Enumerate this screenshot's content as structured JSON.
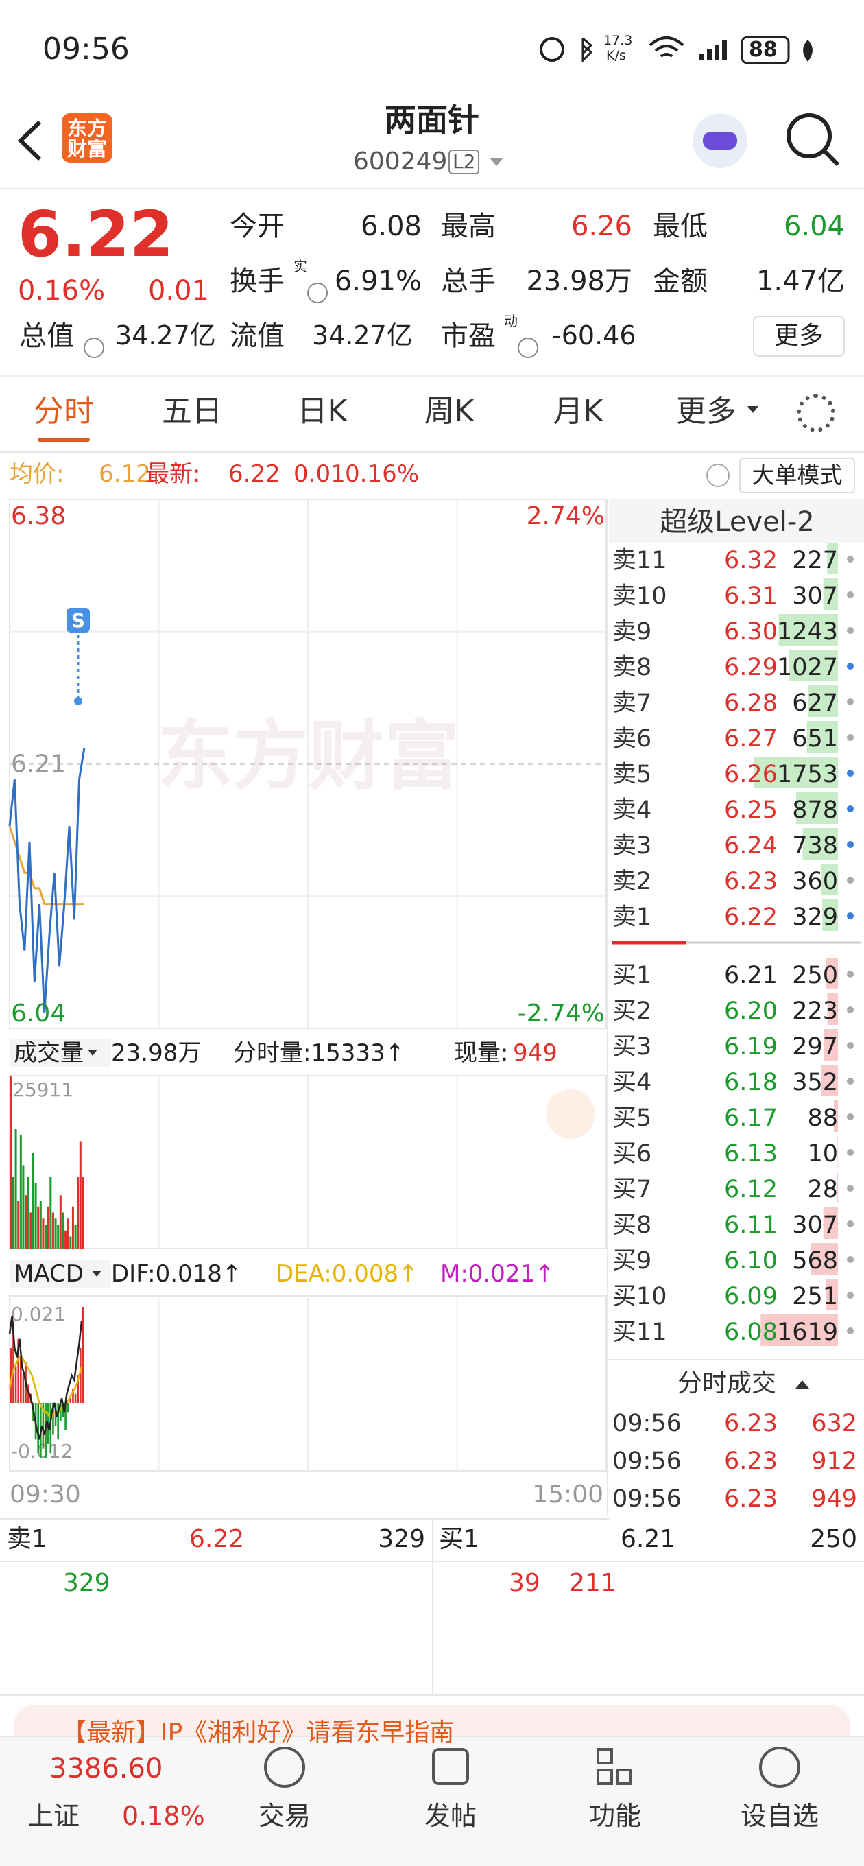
{
  "status_bar": {
    "time": "09:56",
    "net_speed": "17.3",
    "net_unit": "K/s",
    "battery": "88"
  },
  "header": {
    "logo": "东方财富",
    "title": "两面针",
    "code": "600249",
    "badge": "L2"
  },
  "quote": {
    "price": "6.22",
    "change_pct": "0.16%",
    "change": "0.01",
    "stats": [
      [
        "今开",
        "6.08"
      ],
      [
        "最高",
        "6.26"
      ],
      [
        "最低",
        "6.04"
      ],
      [
        "换手",
        "6.91%"
      ],
      [
        "总手",
        "23.98万"
      ],
      [
        "金额",
        "1.47亿"
      ],
      [
        "总值",
        "34.27亿"
      ],
      [
        "流值",
        "34.27亿"
      ],
      [
        "市盈",
        "-60.46"
      ]
    ],
    "turnover_sup": "实",
    "pe_sup": "动",
    "more": "更多"
  },
  "tabs": [
    "分时",
    "五日",
    "日K",
    "周K",
    "月K",
    "更多"
  ],
  "info_bar": {
    "avg_label": "均价:",
    "avg": "6.12",
    "last_label": "最新:",
    "last": "6.22",
    "change": "0.01",
    "change_pct": "0.16%",
    "mode": "大单模式"
  },
  "intraday": {
    "ylim": [
      6.04,
      6.38
    ],
    "yticks": [
      6.38,
      6.21,
      6.04
    ],
    "pct_high": "2.74%",
    "pct_low": "-2.74%",
    "watermark": "东方财富",
    "signal": "S",
    "xlim": [
      0,
      240
    ],
    "xticks": [
      {
        "value": 0,
        "label": "09:30"
      },
      {
        "value": 240,
        "label": "15:00"
      }
    ],
    "x": [
      0,
      2,
      4,
      6,
      8,
      10,
      12,
      14,
      16,
      18,
      20,
      22,
      24,
      26,
      28,
      30
    ],
    "price": [
      6.17,
      6.2,
      6.12,
      6.09,
      6.16,
      6.07,
      6.12,
      6.05,
      6.1,
      6.14,
      6.08,
      6.12,
      6.17,
      6.11,
      6.2,
      6.22
    ],
    "avg": [
      6.17,
      6.16,
      6.15,
      6.14,
      6.14,
      6.13,
      6.13,
      6.12,
      6.12,
      6.12,
      6.12,
      6.12,
      6.12,
      6.12,
      6.12,
      6.12
    ],
    "price_color": "#2f6fc4",
    "avg_color": "#e8a33a"
  },
  "volume": {
    "menu": "成交量",
    "total": "23.98万",
    "minute_vol": "分时量:15333↑",
    "current_label": "现量:",
    "current": "949",
    "ylim": [
      0,
      25911
    ],
    "yticks": [
      25911
    ],
    "x": [
      0,
      1,
      2,
      3,
      4,
      5,
      6,
      7,
      8,
      9,
      10,
      11,
      12,
      13,
      14,
      15,
      16,
      17,
      18,
      19,
      20,
      21,
      22,
      23,
      24,
      25,
      26,
      27,
      28,
      29
    ],
    "values": [
      25911,
      10700,
      17900,
      7100,
      17000,
      12500,
      8000,
      10700,
      5400,
      14300,
      9800,
      6300,
      7100,
      4500,
      3600,
      6300,
      10700,
      5400,
      4500,
      3600,
      8000,
      5400,
      2700,
      4500,
      1800,
      6300,
      3600,
      10700,
      16100,
      10700
    ],
    "colors": [
      "#e0302b",
      "#1a9b2c",
      "#1a9b2c",
      "#e0302b",
      "#1a9b2c",
      "#1a9b2c",
      "#e0302b",
      "#1a9b2c",
      "#e0302b",
      "#1a9b2c",
      "#1a9b2c",
      "#e0302b",
      "#1a9b2c",
      "#e0302b",
      "#1a9b2c",
      "#e0302b",
      "#1a9b2c",
      "#e0302b",
      "#1a9b2c",
      "#1a9b2c",
      "#e0302b",
      "#1a9b2c",
      "#e0302b",
      "#e0302b",
      "#1a9b2c",
      "#e0302b",
      "#1a9b2c",
      "#e0302b",
      "#e0302b",
      "#e0302b"
    ]
  },
  "macd": {
    "menu": "MACD",
    "dif_label": "DIF:0.018↑",
    "dea_label": "DEA:0.008↑",
    "m_label": "M:0.021↑",
    "ylim": [
      -0.012,
      0.021
    ],
    "yticks": [
      0.021,
      -0.012
    ],
    "x": [
      0,
      1,
      2,
      3,
      4,
      5,
      6,
      7,
      8,
      9,
      10,
      11,
      12,
      13,
      14,
      15,
      16,
      17,
      18,
      19,
      20,
      21,
      22,
      23,
      24,
      25,
      26,
      27,
      28,
      29
    ],
    "bars": [
      0.012,
      0.018,
      0.008,
      0.014,
      0.01,
      0.006,
      0.009,
      0.004,
      0.002,
      -0.004,
      -0.008,
      -0.011,
      -0.012,
      -0.01,
      -0.012,
      -0.009,
      -0.011,
      -0.007,
      -0.005,
      -0.008,
      -0.004,
      -0.003,
      -0.006,
      -0.002,
      0.001,
      0.003,
      0.002,
      0.006,
      0.012,
      0.021
    ],
    "dif": [
      0.015,
      0.019,
      0.012,
      0.01,
      0.014,
      0.008,
      0.006,
      0.003,
      0.002,
      0,
      -0.003,
      -0.006,
      -0.008,
      -0.005,
      -0.007,
      -0.004,
      -0.006,
      -0.002,
      0,
      -0.003,
      -0.001,
      0.001,
      -0.002,
      0.002,
      0.004,
      0.006,
      0.005,
      0.009,
      0.013,
      0.018
    ],
    "dea": [
      0.003,
      0.006,
      0.008,
      0.009,
      0.01,
      0.01,
      0.009,
      0.008,
      0.007,
      0.006,
      0.004,
      0.002,
      0,
      -0.001,
      -0.002,
      -0.002,
      -0.003,
      -0.003,
      -0.002,
      -0.002,
      -0.002,
      -0.001,
      -0.001,
      0,
      0.001,
      0.002,
      0.003,
      0.004,
      0.006,
      0.008
    ],
    "dif_color": "#222222",
    "dea_color": "#e5b400",
    "up_color": "#e0302b",
    "down_color": "#1a9b2c"
  },
  "order_book": {
    "title": "超级Level-2",
    "asks": [
      {
        "label": "卖11",
        "price": "6.32",
        "volume": 227,
        "dot": "#aaaaaa"
      },
      {
        "label": "卖10",
        "price": "6.31",
        "volume": 307,
        "dot": "#aaaaaa"
      },
      {
        "label": "卖9",
        "price": "6.30",
        "volume": 1243,
        "dot": "#aaaaaa"
      },
      {
        "label": "卖8",
        "price": "6.29",
        "volume": 1027,
        "dot": "#3b7ddd"
      },
      {
        "label": "卖7",
        "price": "6.28",
        "volume": 627,
        "dot": "#aaaaaa"
      },
      {
        "label": "卖6",
        "price": "6.27",
        "volume": 651,
        "dot": "#aaaaaa"
      },
      {
        "label": "卖5",
        "price": "6.26",
        "volume": 1753,
        "dot": "#3b7ddd"
      },
      {
        "label": "卖4",
        "price": "6.25",
        "volume": 878,
        "dot": "#3b7ddd"
      },
      {
        "label": "卖3",
        "price": "6.24",
        "volume": 738,
        "dot": "#3b7ddd"
      },
      {
        "label": "卖2",
        "price": "6.23",
        "volume": 360,
        "dot": "#aaaaaa"
      },
      {
        "label": "卖1",
        "price": "6.22",
        "volume": 329,
        "dot": "#3b7ddd"
      }
    ],
    "bids": [
      {
        "label": "买1",
        "price": "6.21",
        "volume": 250,
        "dot": "#aaaaaa"
      },
      {
        "label": "买2",
        "price": "6.20",
        "volume": 223,
        "dot": "#aaaaaa"
      },
      {
        "label": "买3",
        "price": "6.19",
        "volume": 297,
        "dot": "#aaaaaa"
      },
      {
        "label": "买4",
        "price": "6.18",
        "volume": 352,
        "dot": "#aaaaaa"
      },
      {
        "label": "买5",
        "price": "6.17",
        "volume": 88,
        "dot": "#aaaaaa"
      },
      {
        "label": "买6",
        "price": "6.13",
        "volume": 10,
        "dot": "#aaaaaa"
      },
      {
        "label": "买7",
        "price": "6.12",
        "volume": 28,
        "dot": "#aaaaaa"
      },
      {
        "label": "买8",
        "price": "6.11",
        "volume": 307,
        "dot": "#aaaaaa"
      },
      {
        "label": "买9",
        "price": "6.10",
        "volume": 568,
        "dot": "#aaaaaa"
      },
      {
        "label": "买10",
        "price": "6.09",
        "volume": 251,
        "dot": "#aaaaaa"
      },
      {
        "label": "买11",
        "price": "6.08",
        "volume": 1619,
        "dot": "#aaaaaa"
      }
    ],
    "ask_bar_color": "#c8ecc8",
    "bid_bar_color": "#f9caca"
  },
  "trades": {
    "title": "分时成交",
    "rows": [
      [
        "09:56",
        "6.23",
        632
      ],
      [
        "09:56",
        "6.23",
        912
      ],
      [
        "09:56",
        "6.23",
        949
      ]
    ]
  },
  "bottom_quote": {
    "ask_label": "卖1",
    "ask_price": "6.22",
    "ask_volume": "329",
    "bid_label": "买1",
    "bid_price": "6.21",
    "bid_volume": "250",
    "ask_detail": [
      "329"
    ],
    "bid_detail": [
      "39",
      "211"
    ]
  },
  "banner": "【最新】IP《湘利好》请看东早指南",
  "nav": {
    "index_value": "3386.60",
    "index_name": "上证",
    "index_pct": "0.18%",
    "items": [
      "交易",
      "发帖",
      "功能",
      "设自选"
    ]
  }
}
